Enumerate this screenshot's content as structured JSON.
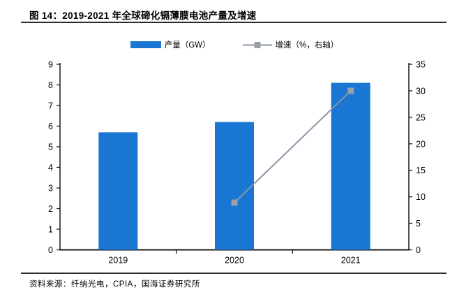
{
  "figure": {
    "title": "图 14：2019-2021 年全球碲化镉薄膜电池产量及增速",
    "source": "资料来源：纤纳光电，CPIA，国海证券研究所"
  },
  "legend": [
    {
      "label": "产量（GW）",
      "type": "bar",
      "color": "#1976d2"
    },
    {
      "label": "增速（%，右轴）",
      "type": "line",
      "color": "#8796a6",
      "marker_color": "#9aa0a7"
    }
  ],
  "chart_data": {
    "type": "bar+line",
    "title": "图 14：2019-2021 年全球碲化镉薄膜电池产量及增速",
    "categories": [
      "2019",
      "2020",
      "2021"
    ],
    "series": [
      {
        "name": "产量（GW）",
        "type": "bar",
        "axis": "left",
        "color": "#1976d2",
        "values": [
          5.7,
          6.2,
          8.1
        ]
      },
      {
        "name": "增速（%，右轴）",
        "type": "line",
        "axis": "right",
        "color": "#8796a6",
        "marker_color": "#9aa0a7",
        "values": [
          null,
          8.9,
          30.0
        ]
      }
    ],
    "left_axis": {
      "min": 0,
      "max": 9,
      "step": 1,
      "ticks": [
        0,
        1,
        2,
        3,
        4,
        5,
        6,
        7,
        8,
        9
      ]
    },
    "right_axis": {
      "min": 0,
      "max": 35,
      "step": 5,
      "ticks": [
        0,
        5,
        10,
        15,
        20,
        25,
        30,
        35
      ]
    },
    "grid": false,
    "legend_position": "top",
    "axis_color": "#1a1a1a"
  }
}
